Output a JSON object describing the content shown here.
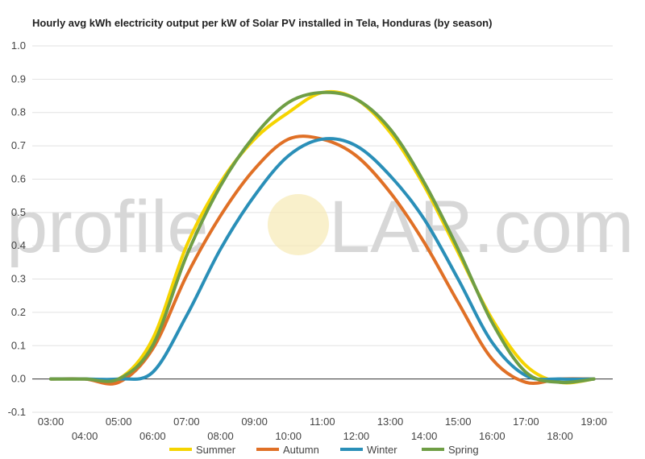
{
  "chart_data": {
    "type": "line",
    "title": "Hourly avg kWh electricity output per kW of Solar PV installed in Tela, Honduras (by season)",
    "xlabel": "",
    "ylabel": "",
    "x": [
      "03:00",
      "04:00",
      "05:00",
      "06:00",
      "07:00",
      "08:00",
      "09:00",
      "10:00",
      "11:00",
      "12:00",
      "13:00",
      "14:00",
      "15:00",
      "16:00",
      "17:00",
      "18:00",
      "19:00"
    ],
    "ylim": [
      -0.1,
      1.0
    ],
    "yticks": [
      "-0.1",
      "0.0",
      "0.1",
      "0.2",
      "0.3",
      "0.4",
      "0.5",
      "0.6",
      "0.7",
      "0.8",
      "0.9",
      "1.0"
    ],
    "grid": true,
    "legend_position": "bottom",
    "watermark": {
      "left": "profile",
      "sun": "S",
      "right": "LAR.com"
    },
    "series": [
      {
        "name": "Summer",
        "color": "#f5d400",
        "values": [
          0.0,
          0.0,
          0.0,
          0.12,
          0.4,
          0.59,
          0.72,
          0.8,
          0.86,
          0.84,
          0.74,
          0.58,
          0.38,
          0.18,
          0.04,
          -0.01,
          0.0
        ]
      },
      {
        "name": "Autumn",
        "color": "#e07026",
        "values": [
          0.0,
          0.0,
          -0.01,
          0.09,
          0.31,
          0.49,
          0.63,
          0.72,
          0.72,
          0.67,
          0.56,
          0.41,
          0.23,
          0.06,
          -0.01,
          0.0,
          0.0
        ]
      },
      {
        "name": "Winter",
        "color": "#2a8fb8",
        "values": [
          0.0,
          0.0,
          0.0,
          0.02,
          0.19,
          0.39,
          0.55,
          0.67,
          0.72,
          0.7,
          0.61,
          0.48,
          0.3,
          0.11,
          0.01,
          0.0,
          0.0
        ]
      },
      {
        "name": "Spring",
        "color": "#6f9e45",
        "values": [
          0.0,
          0.0,
          0.0,
          0.1,
          0.37,
          0.58,
          0.73,
          0.83,
          0.86,
          0.84,
          0.75,
          0.59,
          0.39,
          0.17,
          0.02,
          -0.01,
          0.0
        ]
      }
    ]
  }
}
